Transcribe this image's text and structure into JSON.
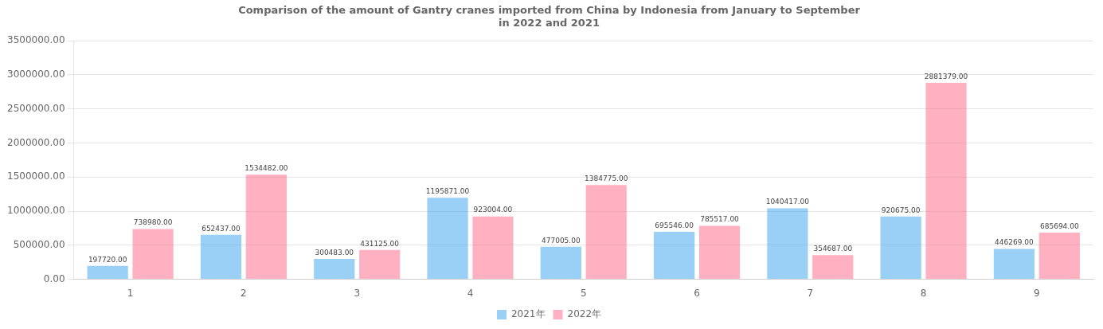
{
  "chart_data": {
    "type": "bar",
    "title": "Comparison of the amount of Gantry cranes imported from China by Indonesia from January to September\nin 2022 and 2021",
    "categories": [
      "1",
      "2",
      "3",
      "4",
      "5",
      "6",
      "7",
      "8",
      "9"
    ],
    "series": [
      {
        "name": "2021年",
        "values": [
          197720.0,
          652437.0,
          300483.0,
          1195871.0,
          477005.0,
          695546.0,
          1040417.0,
          920675.0,
          446269.0
        ],
        "value_labels": [
          "197720.00",
          "652437.00",
          "300483.00",
          "1195871.00",
          "477005.00",
          "695546.00",
          "1040417.00",
          "920675.00",
          "446269.00"
        ]
      },
      {
        "name": "2022年",
        "values": [
          738980.0,
          1534482.0,
          431125.0,
          923004.0,
          1384775.0,
          785517.0,
          354687.0,
          2881379.0,
          685694.0
        ],
        "value_labels": [
          "738980.00",
          "1534482.00",
          "431125.00",
          "923004.00",
          "1384775.00",
          "785517.00",
          "354687.00",
          "2881379.00",
          "685694.00"
        ]
      }
    ],
    "ylim": [
      0,
      3500000
    ],
    "yticks": [
      {
        "value": 0,
        "label": "0.00"
      },
      {
        "value": 500000,
        "label": "500000.00"
      },
      {
        "value": 1000000,
        "label": "1000000.00"
      },
      {
        "value": 1500000,
        "label": "1500000.00"
      },
      {
        "value": 2000000,
        "label": "2000000.00"
      },
      {
        "value": 2500000,
        "label": "2500000.00"
      },
      {
        "value": 3000000,
        "label": "3000000.00"
      },
      {
        "value": 3500000,
        "label": "3500000.00"
      }
    ],
    "grid": true,
    "legend": "bottom",
    "data_labels": true
  }
}
